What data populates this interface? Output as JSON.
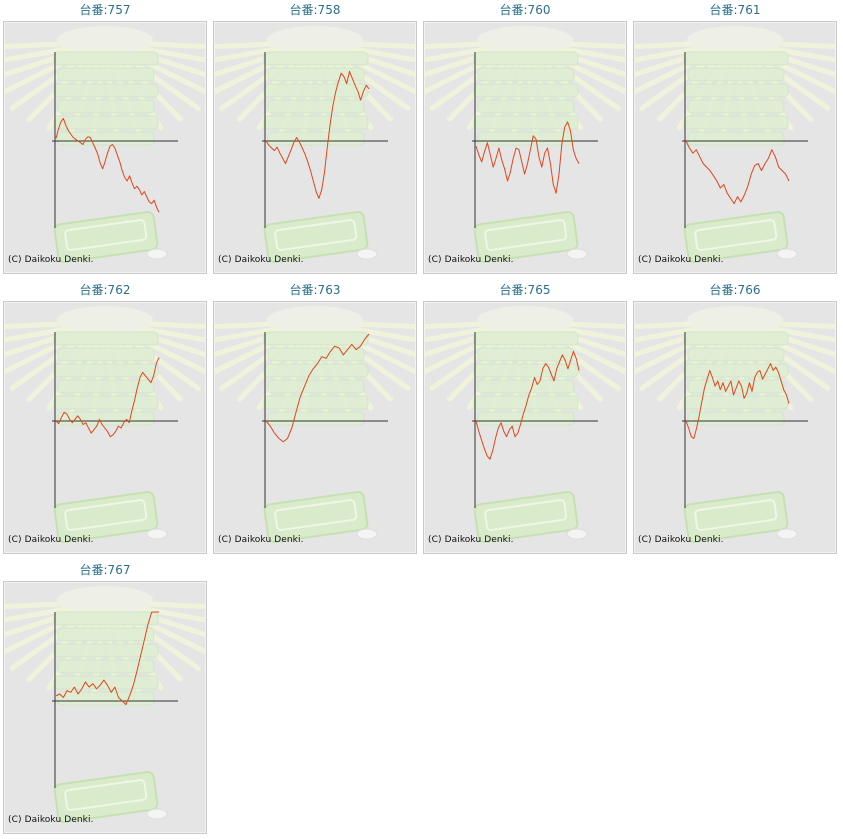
{
  "copyright": "(C) Daikoku Denki.",
  "colors": {
    "line": "#e0461c",
    "axis": "#333333",
    "title": "#2a6f8f",
    "panel": "#e5e5e5"
  },
  "chart_data": [
    {
      "type": "line",
      "title": "台番:757",
      "values": [
        3,
        14,
        22,
        26,
        18,
        12,
        8,
        4,
        2,
        0,
        -2,
        -4,
        2,
        5,
        4,
        -2,
        -8,
        -15,
        -25,
        -32,
        -24,
        -14,
        -6,
        -4,
        -8,
        -16,
        -24,
        -34,
        -42,
        -46,
        -40,
        -48,
        -55,
        -52,
        -56,
        -62,
        -58,
        -64,
        -70,
        -72,
        -68,
        -76,
        -82
      ]
    },
    {
      "type": "line",
      "title": "台番:758",
      "values": [
        0,
        -5,
        -8,
        -11,
        -7,
        -14,
        -20,
        -26,
        -18,
        -10,
        -2,
        4,
        -1,
        -8,
        -15,
        -24,
        -34,
        -46,
        -58,
        -66,
        -56,
        -36,
        -8,
        18,
        40,
        56,
        68,
        78,
        74,
        66,
        80,
        72,
        64,
        57,
        47,
        57,
        64,
        60
      ]
    },
    {
      "type": "line",
      "title": "台番:760",
      "values": [
        -6,
        -16,
        -24,
        -12,
        -2,
        -16,
        -30,
        -20,
        -8,
        -22,
        -32,
        -46,
        -36,
        -20,
        -8,
        -10,
        -24,
        -38,
        -26,
        -10,
        6,
        2,
        -18,
        -30,
        -14,
        -8,
        -26,
        -50,
        -60,
        -38,
        -4,
        16,
        22,
        12,
        -10,
        -20,
        -26
      ]
    },
    {
      "type": "line",
      "title": "台番:761",
      "values": [
        0,
        -8,
        -14,
        -10,
        -18,
        -26,
        -30,
        -34,
        -40,
        -46,
        -54,
        -50,
        -60,
        -66,
        -72,
        -64,
        -70,
        -62,
        -52,
        -38,
        -28,
        -26,
        -34,
        -26,
        -20,
        -10,
        -18,
        -30,
        -34,
        -38,
        -46
      ]
    },
    {
      "type": "line",
      "title": "台番:762",
      "values": [
        0,
        -3,
        4,
        10,
        8,
        2,
        -2,
        2,
        6,
        2,
        -4,
        -2,
        -8,
        -14,
        -10,
        -6,
        2,
        -4,
        -8,
        -12,
        -18,
        -16,
        -12,
        -6,
        -8,
        -2,
        2,
        -2,
        12,
        24,
        38,
        50,
        56,
        52,
        48,
        44,
        52,
        66,
        73
      ]
    },
    {
      "type": "line",
      "title": "台番:763",
      "values": [
        0,
        -6,
        -14,
        -20,
        -24,
        -20,
        -8,
        10,
        28,
        40,
        52,
        60,
        66,
        74,
        72,
        80,
        86,
        84,
        76,
        82,
        88,
        82,
        86,
        94,
        100
      ]
    },
    {
      "type": "line",
      "title": "台番:765",
      "values": [
        0,
        -12,
        -22,
        -32,
        -40,
        -44,
        -34,
        -20,
        -8,
        -2,
        -12,
        -18,
        -10,
        -6,
        -18,
        -14,
        -4,
        8,
        18,
        30,
        38,
        50,
        42,
        46,
        60,
        66,
        62,
        54,
        46,
        60,
        68,
        76,
        70,
        60,
        70,
        80,
        72,
        58
      ]
    },
    {
      "type": "line",
      "title": "台番:766",
      "values": [
        0,
        -8,
        -18,
        -20,
        -8,
        6,
        22,
        38,
        48,
        58,
        50,
        40,
        46,
        36,
        44,
        34,
        40,
        46,
        30,
        38,
        46,
        40,
        26,
        32,
        44,
        34,
        50,
        56,
        58,
        48,
        54,
        60,
        66,
        58,
        62,
        56,
        46,
        36,
        30,
        20
      ]
    },
    {
      "type": "line",
      "title": "台番:767",
      "values": [
        6,
        8,
        4,
        12,
        10,
        16,
        8,
        14,
        22,
        16,
        20,
        14,
        18,
        24,
        18,
        10,
        16,
        4,
        0,
        -4,
        6,
        18,
        34,
        52,
        70,
        88,
        102,
        116,
        128
      ]
    }
  ]
}
